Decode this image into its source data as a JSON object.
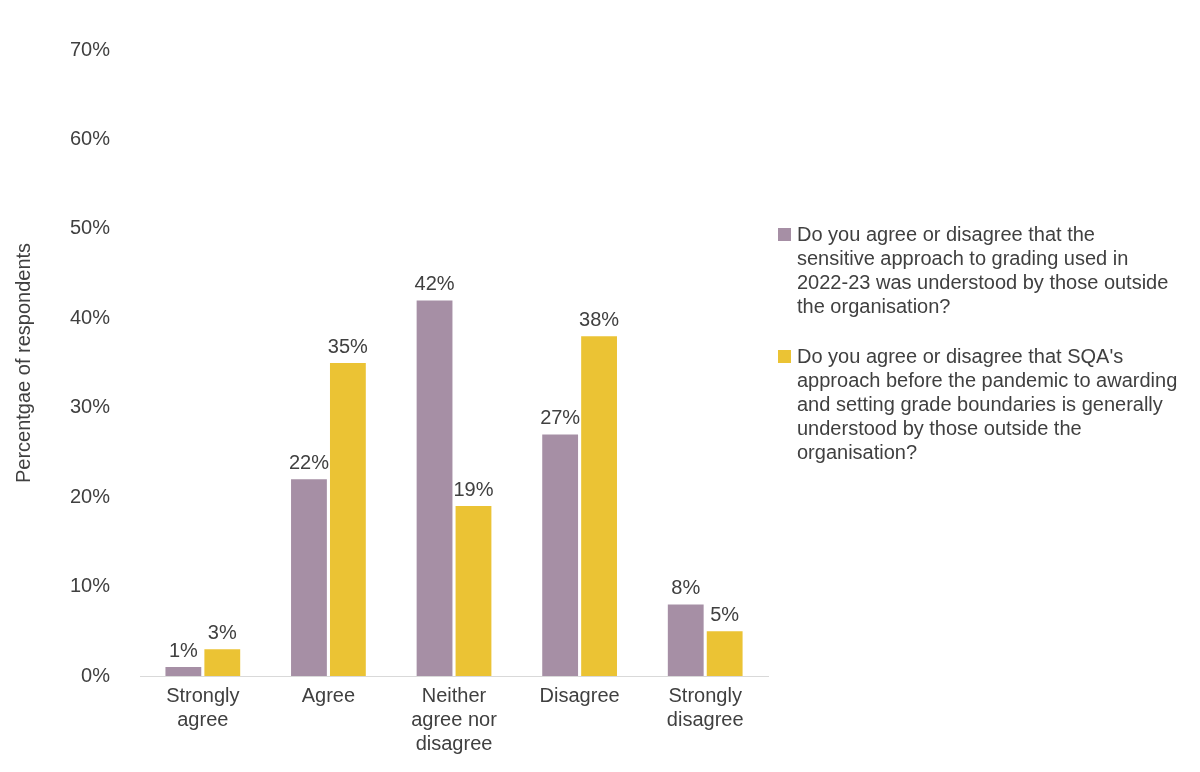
{
  "chart_data": {
    "type": "bar",
    "ylabel": "Percentgae of respondents",
    "categories": [
      "Strongly agree",
      "Agree",
      "Neither agree nor disagree",
      "Disagree",
      "Strongly disagree"
    ],
    "series": [
      {
        "name": "Do you agree or disagree that the sensitive approach to grading used in 2022-23 was understood by those outside the organisation?",
        "color": "#a68fa5",
        "values": [
          1,
          22,
          42,
          27,
          8
        ],
        "value_labels": [
          "1%",
          "22%",
          "42%",
          "27%",
          "8%"
        ]
      },
      {
        "name": "Do you agree or disagree that SQA's approach before the pandemic to awarding and setting grade boundaries is generally understood by those outside the organisation?",
        "color": "#ebc334",
        "values": [
          3,
          35,
          19,
          38,
          5
        ],
        "value_labels": [
          "3%",
          "35%",
          "19%",
          "38%",
          "5%"
        ]
      }
    ],
    "ylim": [
      0,
      70
    ],
    "yticks": [
      {
        "value": 0,
        "label": "0%"
      },
      {
        "value": 10,
        "label": "10%"
      },
      {
        "value": 20,
        "label": "20%"
      },
      {
        "value": 30,
        "label": "30%"
      },
      {
        "value": 40,
        "label": "40%"
      },
      {
        "value": 50,
        "label": "50%"
      },
      {
        "value": 60,
        "label": "60%"
      },
      {
        "value": 70,
        "label": "70%"
      }
    ],
    "grid": false,
    "legend": "right"
  }
}
